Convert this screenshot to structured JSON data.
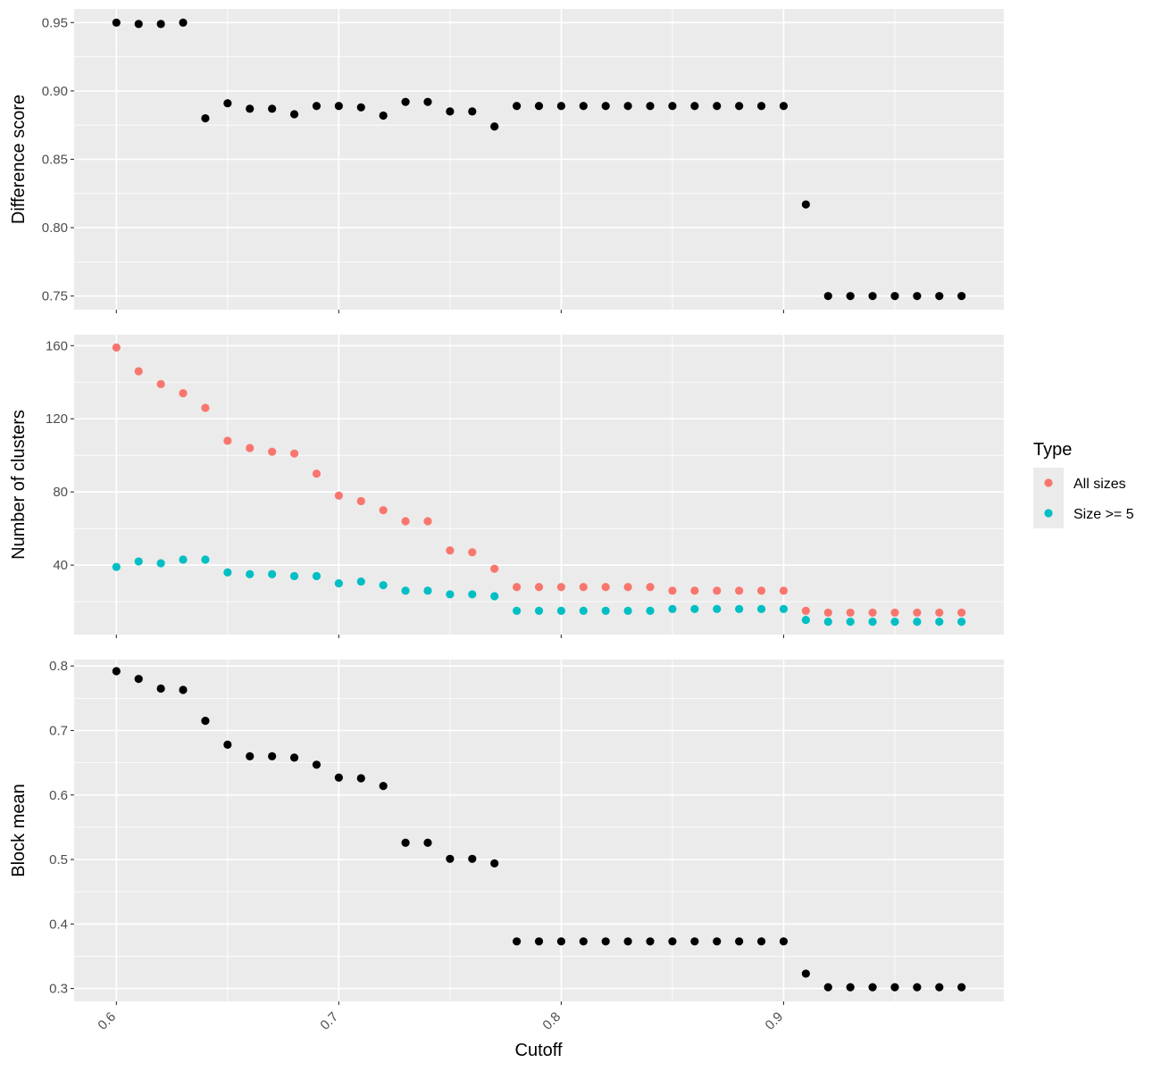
{
  "chart_data": [
    {
      "type": "scatter",
      "xlabel": "",
      "ylabel": "Difference score",
      "xlim": [
        0.581,
        0.999
      ],
      "ylim": [
        0.74,
        0.96
      ],
      "yticks": [
        0.75,
        0.8,
        0.85,
        0.9,
        0.95
      ],
      "ytick_labels": [
        "0.75",
        "0.80",
        "0.85",
        "0.90",
        "0.95"
      ],
      "grid": true,
      "color": "#000000",
      "x": [
        0.6,
        0.61,
        0.62,
        0.63,
        0.64,
        0.65,
        0.66,
        0.67,
        0.68,
        0.69,
        0.7,
        0.71,
        0.72,
        0.73,
        0.74,
        0.75,
        0.76,
        0.77,
        0.78,
        0.79,
        0.8,
        0.81,
        0.82,
        0.83,
        0.84,
        0.85,
        0.86,
        0.87,
        0.88,
        0.89,
        0.9,
        0.91,
        0.92,
        0.93,
        0.94,
        0.95,
        0.96,
        0.97,
        0.98
      ],
      "y": [
        0.95,
        0.949,
        0.949,
        0.95,
        0.88,
        0.891,
        0.887,
        0.887,
        0.883,
        0.889,
        0.889,
        0.888,
        0.882,
        0.892,
        0.892,
        0.885,
        0.885,
        0.874,
        0.889,
        0.889,
        0.889,
        0.889,
        0.889,
        0.889,
        0.889,
        0.889,
        0.889,
        0.889,
        0.889,
        0.889,
        0.889,
        0.817,
        0.75,
        0.75,
        0.75,
        0.75,
        0.75,
        0.75,
        0.75
      ]
    },
    {
      "type": "scatter",
      "xlabel": "",
      "ylabel": "Number of clusters",
      "xlim": [
        0.581,
        0.999
      ],
      "ylim": [
        2,
        166
      ],
      "yticks": [
        40,
        80,
        120,
        160
      ],
      "ytick_labels": [
        "40",
        "80",
        "120",
        "160"
      ],
      "grid": true,
      "legend": {
        "title": "Type",
        "placement": "right"
      },
      "x": [
        0.6,
        0.61,
        0.62,
        0.63,
        0.64,
        0.65,
        0.66,
        0.67,
        0.68,
        0.69,
        0.7,
        0.71,
        0.72,
        0.73,
        0.74,
        0.75,
        0.76,
        0.77,
        0.78,
        0.79,
        0.8,
        0.81,
        0.82,
        0.83,
        0.84,
        0.85,
        0.86,
        0.87,
        0.88,
        0.89,
        0.9,
        0.91,
        0.92,
        0.93,
        0.94,
        0.95,
        0.96,
        0.97,
        0.98
      ],
      "series": [
        {
          "name": "All sizes",
          "color": "#F8766D",
          "values": [
            159,
            146,
            139,
            134,
            126,
            108,
            104,
            102,
            101,
            90,
            78,
            75,
            70,
            64,
            64,
            48,
            47,
            38,
            28,
            28,
            28,
            28,
            28,
            28,
            28,
            26,
            26,
            26,
            26,
            26,
            26,
            15,
            14,
            14,
            14,
            14,
            14,
            14,
            14
          ]
        },
        {
          "name": "Size >= 5",
          "color": "#00BFC4",
          "values": [
            39,
            42,
            41,
            43,
            43,
            36,
            35,
            35,
            34,
            34,
            30,
            31,
            29,
            26,
            26,
            24,
            24,
            23,
            15,
            15,
            15,
            15,
            15,
            15,
            15,
            16,
            16,
            16,
            16,
            16,
            16,
            10,
            9,
            9,
            9,
            9,
            9,
            9,
            9
          ]
        }
      ]
    },
    {
      "type": "scatter",
      "xlabel": "Cutoff",
      "ylabel": "Block mean",
      "xlim": [
        0.581,
        0.999
      ],
      "ylim": [
        0.28,
        0.81
      ],
      "yticks": [
        0.3,
        0.4,
        0.5,
        0.6,
        0.7,
        0.8
      ],
      "ytick_labels": [
        "0.3",
        "0.4",
        "0.5",
        "0.6",
        "0.7",
        "0.8"
      ],
      "xticks": [
        0.6,
        0.7,
        0.8,
        0.9
      ],
      "xtick_labels": [
        "0.6",
        "0.7",
        "0.8",
        "0.9"
      ],
      "grid": true,
      "color": "#000000",
      "x": [
        0.6,
        0.61,
        0.62,
        0.63,
        0.64,
        0.65,
        0.66,
        0.67,
        0.68,
        0.69,
        0.7,
        0.71,
        0.72,
        0.73,
        0.74,
        0.75,
        0.76,
        0.77,
        0.78,
        0.79,
        0.8,
        0.81,
        0.82,
        0.83,
        0.84,
        0.85,
        0.86,
        0.87,
        0.88,
        0.89,
        0.9,
        0.91,
        0.92,
        0.93,
        0.94,
        0.95,
        0.96,
        0.97,
        0.98
      ],
      "y": [
        0.792,
        0.78,
        0.765,
        0.763,
        0.715,
        0.678,
        0.66,
        0.66,
        0.658,
        0.647,
        0.627,
        0.626,
        0.614,
        0.526,
        0.526,
        0.501,
        0.501,
        0.494,
        0.373,
        0.373,
        0.373,
        0.373,
        0.373,
        0.373,
        0.373,
        0.373,
        0.373,
        0.373,
        0.373,
        0.373,
        0.373,
        0.323,
        0.302,
        0.302,
        0.302,
        0.302,
        0.302,
        0.302,
        0.302
      ]
    }
  ]
}
